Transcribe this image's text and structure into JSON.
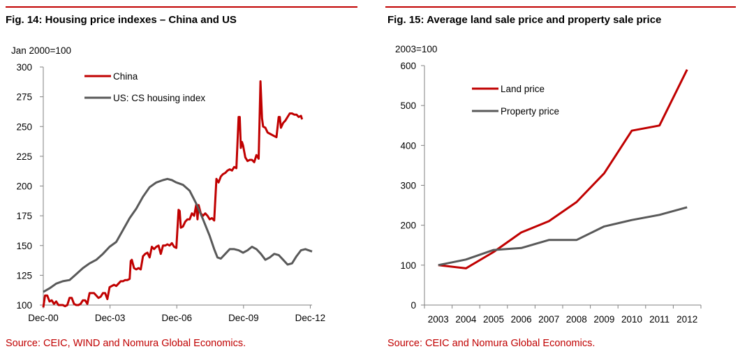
{
  "figures": [
    {
      "title": "Fig. 14: Housing price indexes – China and US",
      "source": "Source: CEIC, WIND and Nomura Global Economics."
    },
    {
      "title": "Fig. 15: Average land sale price and property sale price",
      "source": "Source: CEIC and Nomura Global Economics."
    }
  ],
  "colors": {
    "accent": "#c00000",
    "china": "#c00000",
    "us": "#595959",
    "axis": "#808080"
  },
  "chart_data": [
    {
      "type": "line",
      "title": "Fig. 14: Housing price indexes – China and US",
      "ylabel": "Jan 2000=100",
      "xlabel": "",
      "xlim": [
        2000.92,
        2013.0
      ],
      "ylim": [
        100,
        300
      ],
      "yticks": [
        100,
        125,
        150,
        175,
        200,
        225,
        250,
        275,
        300
      ],
      "xtick_labels": [
        "Dec-00",
        "Dec-03",
        "Dec-06",
        "Dec-09",
        "Dec-12"
      ],
      "xtick_values": [
        2000.92,
        2003.92,
        2006.92,
        2009.92,
        2012.92
      ],
      "grid": false,
      "legend_position": "top-left",
      "series": [
        {
          "name": "China",
          "color": "#c00000",
          "points": [
            [
              2000.92,
              98
            ],
            [
              2001.0,
              108
            ],
            [
              2001.1,
              108
            ],
            [
              2001.2,
              103
            ],
            [
              2001.3,
              104
            ],
            [
              2001.4,
              101
            ],
            [
              2001.5,
              103
            ],
            [
              2001.6,
              100
            ],
            [
              2001.7,
              100
            ],
            [
              2001.8,
              100
            ],
            [
              2001.9,
              99
            ],
            [
              2002.0,
              100
            ],
            [
              2002.1,
              106
            ],
            [
              2002.2,
              106
            ],
            [
              2002.3,
              101
            ],
            [
              2002.4,
              100
            ],
            [
              2002.5,
              100
            ],
            [
              2002.6,
              101
            ],
            [
              2002.7,
              104
            ],
            [
              2002.8,
              104
            ],
            [
              2002.9,
              101
            ],
            [
              2003.0,
              110
            ],
            [
              2003.1,
              110
            ],
            [
              2003.2,
              110
            ],
            [
              2003.3,
              108
            ],
            [
              2003.4,
              106
            ],
            [
              2003.5,
              107
            ],
            [
              2003.6,
              110
            ],
            [
              2003.7,
              110
            ],
            [
              2003.8,
              105
            ],
            [
              2003.9,
              115
            ],
            [
              2004.0,
              116
            ],
            [
              2004.1,
              117
            ],
            [
              2004.2,
              116
            ],
            [
              2004.3,
              118
            ],
            [
              2004.4,
              120
            ],
            [
              2004.5,
              120
            ],
            [
              2004.6,
              121
            ],
            [
              2004.7,
              121
            ],
            [
              2004.8,
              122
            ],
            [
              2004.85,
              137
            ],
            [
              2004.9,
              138
            ],
            [
              2005.0,
              131
            ],
            [
              2005.1,
              130
            ],
            [
              2005.2,
              131
            ],
            [
              2005.3,
              130
            ],
            [
              2005.4,
              141
            ],
            [
              2005.5,
              143
            ],
            [
              2005.6,
              144
            ],
            [
              2005.7,
              140
            ],
            [
              2005.8,
              149
            ],
            [
              2005.9,
              147
            ],
            [
              2006.0,
              149
            ],
            [
              2006.1,
              150
            ],
            [
              2006.2,
              143
            ],
            [
              2006.3,
              150
            ],
            [
              2006.4,
              150
            ],
            [
              2006.5,
              151
            ],
            [
              2006.6,
              150
            ],
            [
              2006.7,
              152
            ],
            [
              2006.8,
              149
            ],
            [
              2006.9,
              148
            ],
            [
              2007.0,
              180
            ],
            [
              2007.05,
              179
            ],
            [
              2007.1,
              165
            ],
            [
              2007.2,
              166
            ],
            [
              2007.3,
              170
            ],
            [
              2007.4,
              172
            ],
            [
              2007.5,
              172
            ],
            [
              2007.6,
              177
            ],
            [
              2007.7,
              175
            ],
            [
              2007.8,
              185
            ],
            [
              2007.85,
              172
            ],
            [
              2007.9,
              184
            ],
            [
              2008.0,
              177
            ],
            [
              2008.1,
              175
            ],
            [
              2008.2,
              177
            ],
            [
              2008.3,
              175
            ],
            [
              2008.4,
              172
            ],
            [
              2008.5,
              173
            ],
            [
              2008.6,
              171
            ],
            [
              2008.7,
              206
            ],
            [
              2008.8,
              203
            ],
            [
              2008.9,
              208
            ],
            [
              2009.0,
              210
            ],
            [
              2009.1,
              211
            ],
            [
              2009.2,
              213
            ],
            [
              2009.3,
              214
            ],
            [
              2009.4,
              213
            ],
            [
              2009.5,
              216
            ],
            [
              2009.6,
              215
            ],
            [
              2009.7,
              258
            ],
            [
              2009.75,
              258
            ],
            [
              2009.8,
              232
            ],
            [
              2009.85,
              237
            ],
            [
              2009.9,
              234
            ],
            [
              2010.0,
              224
            ],
            [
              2010.1,
              221
            ],
            [
              2010.2,
              222
            ],
            [
              2010.3,
              222
            ],
            [
              2010.4,
              220
            ],
            [
              2010.5,
              226
            ],
            [
              2010.6,
              223
            ],
            [
              2010.68,
              288
            ],
            [
              2010.75,
              257
            ],
            [
              2010.8,
              250
            ],
            [
              2010.9,
              249
            ],
            [
              2011.0,
              245
            ],
            [
              2011.1,
              244
            ],
            [
              2011.2,
              243
            ],
            [
              2011.3,
              242
            ],
            [
              2011.4,
              241
            ],
            [
              2011.5,
              258
            ],
            [
              2011.55,
              258
            ],
            [
              2011.6,
              249
            ],
            [
              2011.7,
              253
            ],
            [
              2011.8,
              255
            ],
            [
              2011.9,
              258
            ],
            [
              2012.0,
              261
            ],
            [
              2012.1,
              261
            ],
            [
              2012.2,
              260
            ],
            [
              2012.3,
              260
            ],
            [
              2012.4,
              258
            ],
            [
              2012.5,
              259
            ],
            [
              2012.55,
              256
            ]
          ]
        },
        {
          "name": "US: CS housing index",
          "color": "#595959",
          "points": [
            [
              2000.92,
              111
            ],
            [
              2001.2,
              114
            ],
            [
              2001.5,
              118
            ],
            [
              2001.8,
              120
            ],
            [
              2002.1,
              121
            ],
            [
              2002.4,
              126
            ],
            [
              2002.7,
              131
            ],
            [
              2003.0,
              135
            ],
            [
              2003.3,
              138
            ],
            [
              2003.6,
              143
            ],
            [
              2003.9,
              149
            ],
            [
              2004.2,
              153
            ],
            [
              2004.5,
              163
            ],
            [
              2004.8,
              173
            ],
            [
              2005.1,
              181
            ],
            [
              2005.4,
              191
            ],
            [
              2005.7,
              199
            ],
            [
              2006.0,
              203
            ],
            [
              2006.3,
              205
            ],
            [
              2006.5,
              206
            ],
            [
              2006.7,
              205
            ],
            [
              2006.9,
              203
            ],
            [
              2007.2,
              201
            ],
            [
              2007.5,
              196
            ],
            [
              2007.8,
              185
            ],
            [
              2008.1,
              172
            ],
            [
              2008.4,
              158
            ],
            [
              2008.6,
              147
            ],
            [
              2008.75,
              140
            ],
            [
              2008.9,
              139
            ],
            [
              2009.1,
              143
            ],
            [
              2009.3,
              147
            ],
            [
              2009.5,
              147
            ],
            [
              2009.7,
              146
            ],
            [
              2009.9,
              144
            ],
            [
              2010.1,
              146
            ],
            [
              2010.3,
              149
            ],
            [
              2010.5,
              147
            ],
            [
              2010.7,
              143
            ],
            [
              2010.9,
              138
            ],
            [
              2011.1,
              140
            ],
            [
              2011.3,
              143
            ],
            [
              2011.5,
              142
            ],
            [
              2011.7,
              138
            ],
            [
              2011.9,
              134
            ],
            [
              2012.1,
              135
            ],
            [
              2012.3,
              141
            ],
            [
              2012.5,
              146
            ],
            [
              2012.7,
              147
            ],
            [
              2013.0,
              145
            ]
          ]
        }
      ]
    },
    {
      "type": "line",
      "title": "Fig. 15: Average land sale price and property sale price",
      "ylabel": "2003=100",
      "xlabel": "",
      "categories": [
        "2003",
        "2004",
        "2005",
        "2006",
        "2007",
        "2008",
        "2009",
        "2010",
        "2011",
        "2012"
      ],
      "ylim": [
        0,
        600
      ],
      "yticks": [
        0,
        100,
        200,
        300,
        400,
        500,
        600
      ],
      "grid": false,
      "legend_position": "top-left",
      "series": [
        {
          "name": "Land price",
          "color": "#c00000",
          "values": [
            100,
            92,
            133,
            182,
            210,
            258,
            330,
            437,
            450,
            590
          ]
        },
        {
          "name": "Property price",
          "color": "#595959",
          "values": [
            100,
            114,
            138,
            143,
            163,
            163,
            197,
            213,
            226,
            245
          ]
        }
      ]
    }
  ]
}
